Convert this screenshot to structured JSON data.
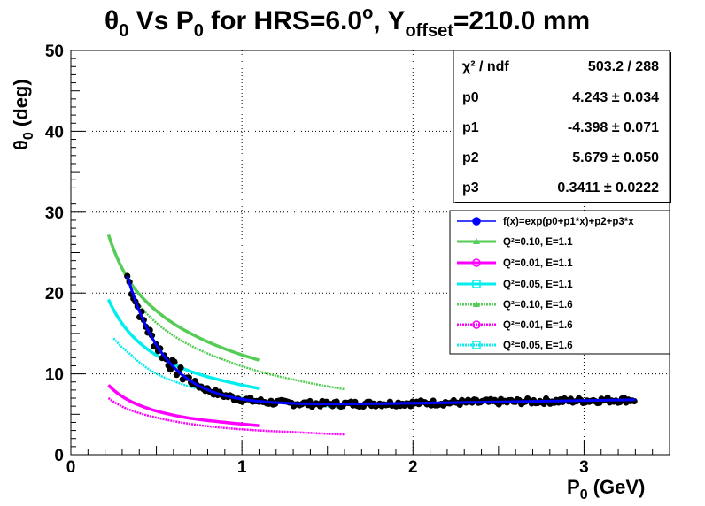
{
  "chart_data": {
    "type": "scatter",
    "title_parts": {
      "theta": "θ",
      "sub0": "0",
      "vs": " Vs P",
      "sub0b": "0",
      "rest": " for HRS=6.0",
      "sup": "o",
      "y": ", Y",
      "offset": "offset",
      "end": "=210.0 mm"
    },
    "ylabel_parts": {
      "theta": "θ",
      "sub": "0",
      "unit": " (deg)"
    },
    "xlabel_parts": {
      "p": "P",
      "sub": "0",
      "unit": " (GeV)"
    },
    "xlim": [
      0,
      3.5
    ],
    "ylim": [
      0,
      50
    ],
    "x_ticks": [
      0,
      1,
      2,
      3
    ],
    "y_ticks": [
      0,
      10,
      20,
      30,
      40,
      50
    ],
    "grid": true,
    "stats": [
      {
        "key": "χ² / ndf",
        "value": "503.2 / 288"
      },
      {
        "key": "p0",
        "value": "4.243 ± 0.034"
      },
      {
        "key": "p1",
        "value": "-4.398 ± 0.071"
      },
      {
        "key": "p2",
        "value": "5.679 ± 0.050"
      },
      {
        "key": "p3",
        "value": "0.3411 ± 0.0222"
      }
    ],
    "fit": {
      "p0": 4.243,
      "p1": -4.398,
      "p2": 5.679,
      "p3": 0.3411,
      "x_range": [
        0.33,
        3.3
      ]
    },
    "data_points": {
      "color": "#000000",
      "x_range": [
        0.33,
        3.3
      ],
      "description": "black circle markers following the fit"
    },
    "series": [
      {
        "name": "f(x)=exp(p0+p1*x)+p2+p3*x",
        "color": "#0000ff",
        "style": "solid",
        "marker": "circle"
      },
      {
        "name": "Q²=0.10, E=1.1",
        "color": "#55cc55",
        "style": "solid",
        "marker": "triangle",
        "x": [
          0.22,
          0.35,
          0.5,
          0.7,
          0.9,
          1.1
        ],
        "y": [
          27.2,
          21.2,
          17.8,
          15.0,
          13.1,
          11.7
        ]
      },
      {
        "name": "Q²=0.01, E=1.1",
        "color": "#ff00ff",
        "style": "solid",
        "marker": "circle",
        "x": [
          0.22,
          0.35,
          0.5,
          0.7,
          0.9,
          1.1
        ],
        "y": [
          8.6,
          6.6,
          5.4,
          4.5,
          4.0,
          3.6
        ]
      },
      {
        "name": "Q²=0.05, E=1.1",
        "color": "#00eeee",
        "style": "solid",
        "marker": "cross",
        "x": [
          0.22,
          0.35,
          0.5,
          0.7,
          0.9,
          1.1
        ],
        "y": [
          19.2,
          14.9,
          12.3,
          10.3,
          9.1,
          8.2
        ]
      },
      {
        "name": "Q²=0.10, E=1.6",
        "color": "#55cc55",
        "style": "dashed",
        "marker": "triangle",
        "x": [
          0.35,
          0.5,
          0.7,
          0.9,
          1.1,
          1.3,
          1.6
        ],
        "y": [
          20.0,
          16.3,
          13.5,
          11.7,
          10.3,
          9.3,
          8.1
        ]
      },
      {
        "name": "Q²=0.01, E=1.6",
        "color": "#ff00ff",
        "style": "dashed",
        "marker": "circle",
        "x": [
          0.22,
          0.35,
          0.5,
          0.7,
          0.9,
          1.1,
          1.3,
          1.6
        ],
        "y": [
          7.0,
          5.5,
          4.6,
          3.8,
          3.3,
          3.0,
          2.8,
          2.5
        ]
      },
      {
        "name": "Q²=0.05, E=1.6",
        "color": "#00eeee",
        "style": "dashed",
        "marker": "cross",
        "x": [
          0.25,
          0.35,
          0.5,
          0.7,
          0.9,
          1.1,
          1.3,
          1.6
        ],
        "y": [
          14.4,
          12.4,
          10.0,
          8.4,
          7.4,
          6.7,
          6.3,
          5.8
        ]
      }
    ]
  }
}
